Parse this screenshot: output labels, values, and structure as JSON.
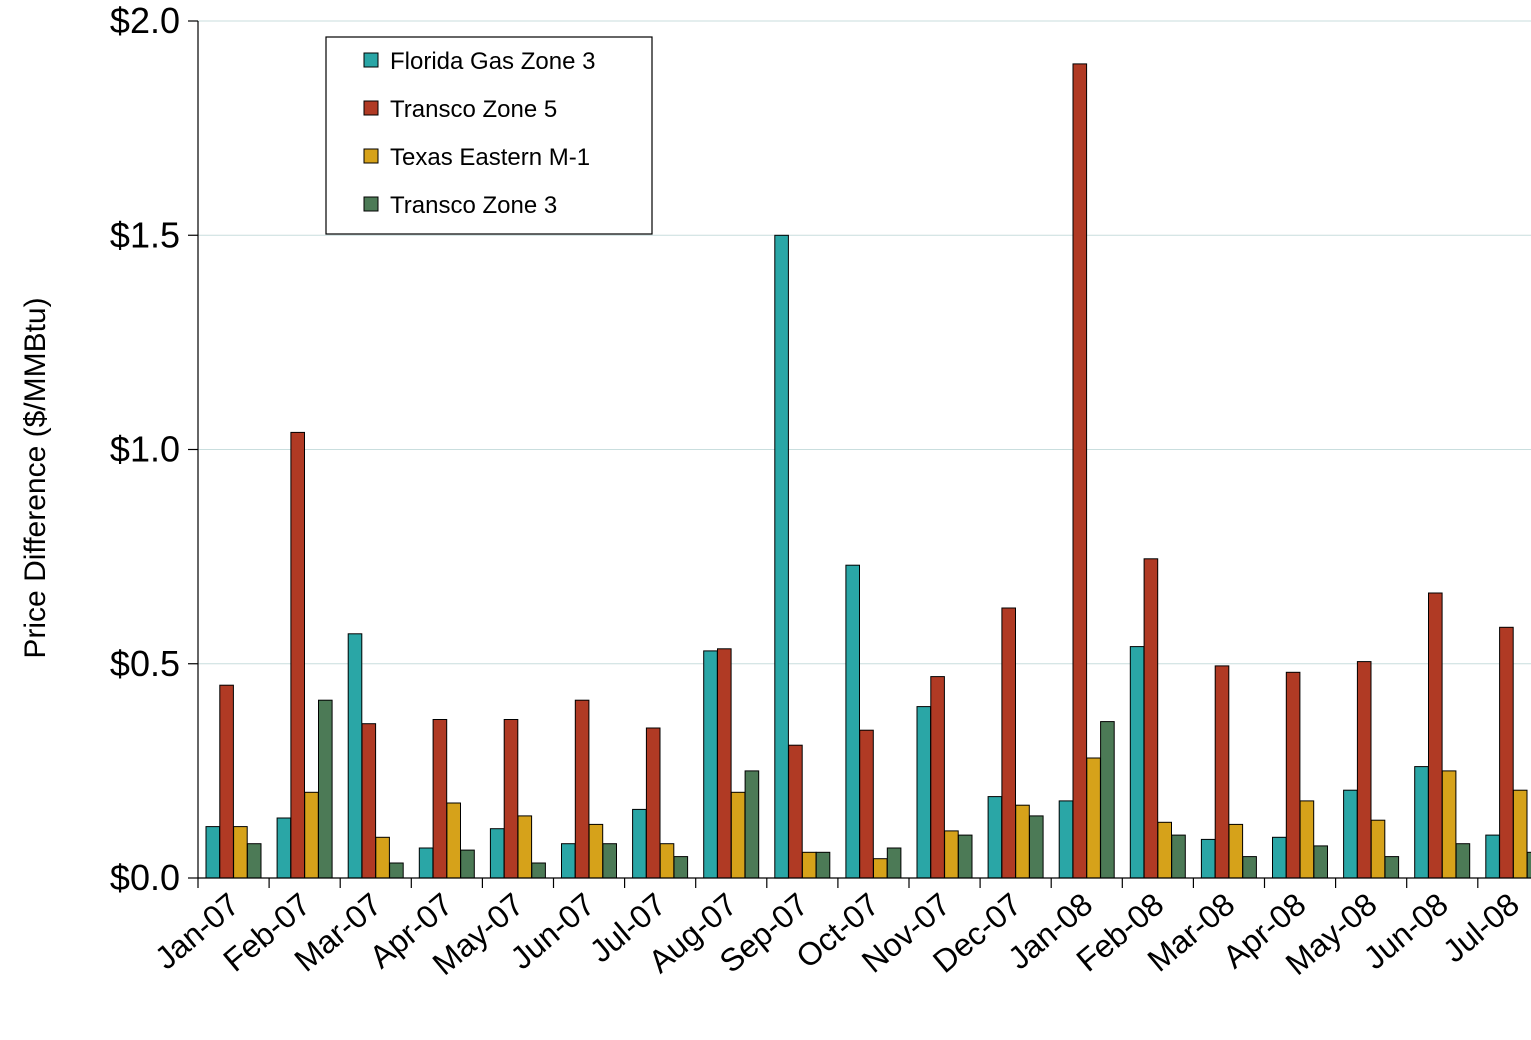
{
  "chart_data": {
    "type": "bar",
    "title": "",
    "xlabel": "",
    "ylabel": "Price Difference  ($/MMBtu)",
    "ylim": [
      0,
      2.0
    ],
    "yticks": [
      "$0.0",
      "$0.5",
      "$1.0",
      "$1.5",
      "$2.0"
    ],
    "ytick_values": [
      0,
      0.5,
      1.0,
      1.5,
      2.0
    ],
    "grid": true,
    "legend_position": "top-left",
    "categories": [
      "Jan-07",
      "Feb-07",
      "Mar-07",
      "Apr-07",
      "May-07",
      "Jun-07",
      "Jul-07",
      "Aug-07",
      "Sep-07",
      "Oct-07",
      "Nov-07",
      "Dec-07",
      "Jan-08",
      "Feb-08",
      "Mar-08",
      "Apr-08",
      "May-08",
      "Jun-08",
      "Jul-08"
    ],
    "series": [
      {
        "name": "Florida Gas Zone 3",
        "color": "#2aa6a6",
        "values": [
          0.12,
          0.14,
          0.57,
          0.07,
          0.115,
          0.08,
          0.16,
          0.53,
          1.5,
          0.73,
          0.4,
          0.19,
          0.18,
          0.54,
          0.09,
          0.095,
          0.205,
          0.26,
          0.1
        ]
      },
      {
        "name": "Transco Zone 5",
        "color": "#b03a24",
        "values": [
          0.45,
          1.04,
          0.36,
          0.37,
          0.37,
          0.415,
          0.35,
          0.535,
          0.31,
          0.345,
          0.47,
          0.63,
          1.9,
          0.745,
          0.495,
          0.48,
          0.505,
          0.665,
          0.585
        ]
      },
      {
        "name": "Texas Eastern M-1",
        "color": "#d6a21a",
        "values": [
          0.12,
          0.2,
          0.095,
          0.175,
          0.145,
          0.125,
          0.08,
          0.2,
          0.06,
          0.045,
          0.11,
          0.17,
          0.28,
          0.13,
          0.125,
          0.18,
          0.135,
          0.25,
          0.205
        ]
      },
      {
        "name": "Transco Zone 3",
        "color": "#4c7a56",
        "values": [
          0.08,
          0.415,
          0.035,
          0.065,
          0.035,
          0.08,
          0.05,
          0.25,
          0.06,
          0.07,
          0.1,
          0.145,
          0.365,
          0.1,
          0.05,
          0.075,
          0.05,
          0.08,
          0.06
        ]
      }
    ]
  }
}
